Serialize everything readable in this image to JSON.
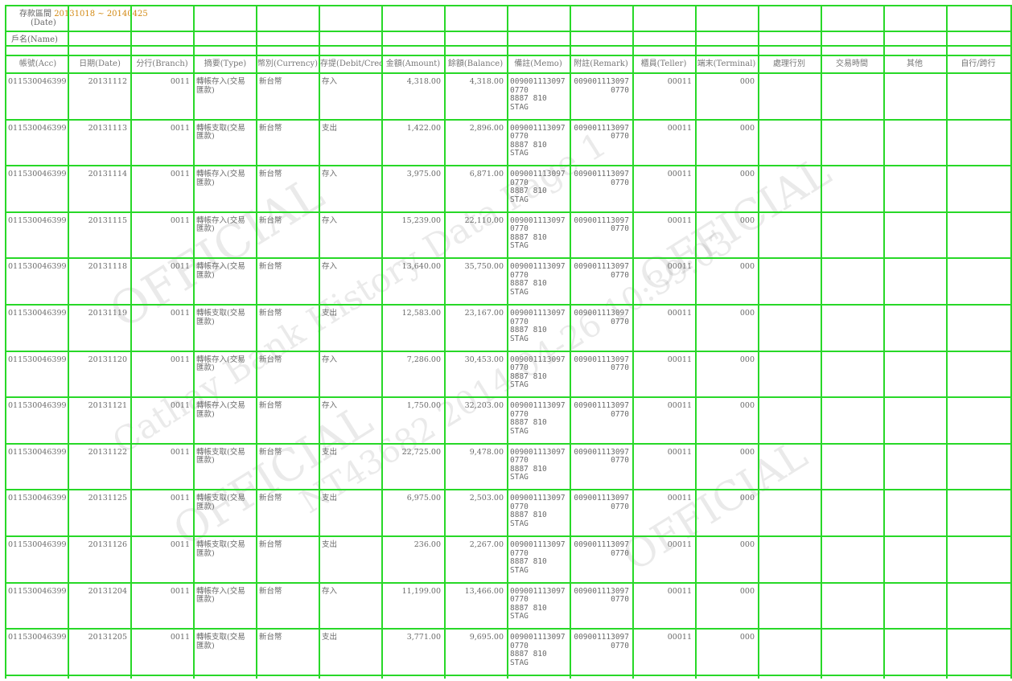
{
  "header": {
    "date_label": "存款區間",
    "date_label_en": "(Date)",
    "date_range": "20131018 ~ 20140425",
    "name_label": "戶名(Name)"
  },
  "columns": [
    {
      "key": "account",
      "label": "帳號(Acc)"
    },
    {
      "key": "date",
      "label": "日期(Date)"
    },
    {
      "key": "branch",
      "label": "分行(Branch)"
    },
    {
      "key": "type",
      "label": "摘要(Type)"
    },
    {
      "key": "currency",
      "label": "幣別(Currency)"
    },
    {
      "key": "dc",
      "label": "存提(Debit/Credit)"
    },
    {
      "key": "amount",
      "label": "金額(Amount)"
    },
    {
      "key": "balance",
      "label": "餘額(Balance)"
    },
    {
      "key": "memo",
      "label": "備註(Memo)"
    },
    {
      "key": "remark",
      "label": "附註(Remark)"
    },
    {
      "key": "teller",
      "label": "櫃員(Teller)"
    },
    {
      "key": "terminal",
      "label": "端末(Terminal)"
    },
    {
      "key": "x1",
      "label": "處理行別"
    },
    {
      "key": "x2",
      "label": "交易時間"
    },
    {
      "key": "x3",
      "label": "其他"
    },
    {
      "key": "x4",
      "label": "自行/跨行"
    }
  ],
  "rows": [
    {
      "account": "011530046399",
      "date": "20131112",
      "branch": "0011",
      "type": "轉帳存入(交易\n匯款)",
      "currency": "新台幣",
      "dc": "存入",
      "amount": "4,318.00",
      "balance": "4,318.00",
      "memo": "009001113097\n0770\n8887 810\nSTAG",
      "remark": "009001113097\n0770",
      "teller": "00011",
      "terminal": "000"
    },
    {
      "account": "011530046399",
      "date": "20131113",
      "branch": "0011",
      "type": "轉帳支取(交易\n匯款)",
      "currency": "新台幣",
      "dc": "支出",
      "amount": "1,422.00",
      "balance": "2,896.00",
      "memo": "009001113097\n0770\n8887 810\nSTAG",
      "remark": "009001113097\n0770",
      "teller": "00011",
      "terminal": "000"
    },
    {
      "account": "011530046399",
      "date": "20131114",
      "branch": "0011",
      "type": "轉帳存入(交易\n匯款)",
      "currency": "新台幣",
      "dc": "存入",
      "amount": "3,975.00",
      "balance": "6,871.00",
      "memo": "009001113097\n0770\n8887 810\nSTAG",
      "remark": "009001113097\n0770",
      "teller": "00011",
      "terminal": "000"
    },
    {
      "account": "011530046399",
      "date": "20131115",
      "branch": "0011",
      "type": "轉帳存入(交易\n匯款)",
      "currency": "新台幣",
      "dc": "存入",
      "amount": "15,239.00",
      "balance": "22,110.00",
      "memo": "009001113097\n0770\n8887 810\nSTAG",
      "remark": "009001113097\n0770",
      "teller": "00011",
      "terminal": "000"
    },
    {
      "account": "011530046399",
      "date": "20131118",
      "branch": "0011",
      "type": "轉帳存入(交易\n匯款)",
      "currency": "新台幣",
      "dc": "存入",
      "amount": "13,640.00",
      "balance": "35,750.00",
      "memo": "009001113097\n0770\n8887 810\nSTAG",
      "remark": "009001113097\n0770",
      "teller": "00011",
      "terminal": "000"
    },
    {
      "account": "011530046399",
      "date": "20131119",
      "branch": "0011",
      "type": "轉帳支取(交易\n匯款)",
      "currency": "新台幣",
      "dc": "支出",
      "amount": "12,583.00",
      "balance": "23,167.00",
      "memo": "009001113097\n0770\n8887 810\nSTAG",
      "remark": "009001113097\n0770",
      "teller": "00011",
      "terminal": "000"
    },
    {
      "account": "011530046399",
      "date": "20131120",
      "branch": "0011",
      "type": "轉帳存入(交易\n匯款)",
      "currency": "新台幣",
      "dc": "存入",
      "amount": "7,286.00",
      "balance": "30,453.00",
      "memo": "009001113097\n0770\n8887 810\nSTAG",
      "remark": "009001113097\n0770",
      "teller": "00011",
      "terminal": "000"
    },
    {
      "account": "011530046399",
      "date": "20131121",
      "branch": "0011",
      "type": "轉帳存入(交易\n匯款)",
      "currency": "新台幣",
      "dc": "存入",
      "amount": "1,750.00",
      "balance": "32,203.00",
      "memo": "009001113097\n0770\n8887 810\nSTAG",
      "remark": "009001113097\n0770",
      "teller": "00011",
      "terminal": "000"
    },
    {
      "account": "011530046399",
      "date": "20131122",
      "branch": "0011",
      "type": "轉帳支取(交易\n匯款)",
      "currency": "新台幣",
      "dc": "支出",
      "amount": "22,725.00",
      "balance": "9,478.00",
      "memo": "009001113097\n0770\n8887 810\nSTAG",
      "remark": "009001113097\n0770",
      "teller": "00011",
      "terminal": "000"
    },
    {
      "account": "011530046399",
      "date": "20131125",
      "branch": "0011",
      "type": "轉帳支取(交易\n匯款)",
      "currency": "新台幣",
      "dc": "支出",
      "amount": "6,975.00",
      "balance": "2,503.00",
      "memo": "009001113097\n0770\n8887 810\nSTAG",
      "remark": "009001113097\n0770",
      "teller": "00011",
      "terminal": "000"
    },
    {
      "account": "011530046399",
      "date": "20131126",
      "branch": "0011",
      "type": "轉帳支取(交易\n匯款)",
      "currency": "新台幣",
      "dc": "支出",
      "amount": "236.00",
      "balance": "2,267.00",
      "memo": "009001113097\n0770\n8887 810\nSTAG",
      "remark": "009001113097\n0770",
      "teller": "00011",
      "terminal": "000"
    },
    {
      "account": "011530046399",
      "date": "20131204",
      "branch": "0011",
      "type": "轉帳存入(交易\n匯款)",
      "currency": "新台幣",
      "dc": "存入",
      "amount": "11,199.00",
      "balance": "13,466.00",
      "memo": "009001113097\n0770\n8887 810\nSTAG",
      "remark": "009001113097\n0770",
      "teller": "00011",
      "terminal": "000"
    },
    {
      "account": "011530046399",
      "date": "20131205",
      "branch": "0011",
      "type": "轉帳支取(交易\n匯款)",
      "currency": "新台幣",
      "dc": "支出",
      "amount": "3,771.00",
      "balance": "9,695.00",
      "memo": "009001113097\n0770\n8887 810\nSTAG",
      "remark": "009001113097\n0770",
      "teller": "00011",
      "terminal": "000"
    }
  ],
  "watermarks": [
    "OFFICIAL",
    "Cathay Bank History Data Page 1",
    "NT43682 2014-04-26 10:39:03",
    "OFFICIAL",
    "OFFICIAL",
    "OFFICIAL"
  ]
}
